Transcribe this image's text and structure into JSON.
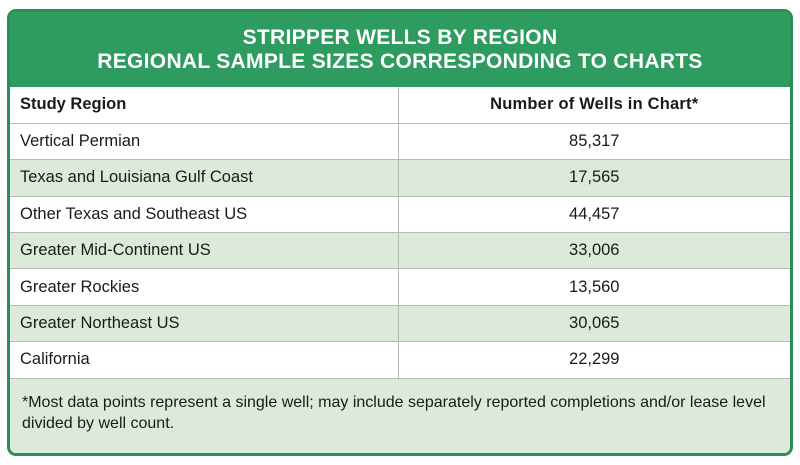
{
  "title": {
    "line1": "STRIPPER WELLS BY REGION",
    "line2": "REGIONAL SAMPLE SIZES CORRESPONDING TO CHARTS"
  },
  "table": {
    "headers": [
      "Study Region",
      "Number of Wells in Chart*"
    ],
    "rows": [
      [
        "Vertical Permian",
        "85,317"
      ],
      [
        "Texas and Louisiana Gulf Coast",
        "17,565"
      ],
      [
        "Other Texas and Southeast US",
        "44,457"
      ],
      [
        "Greater Mid-Continent US",
        "33,006"
      ],
      [
        "Greater Rockies",
        "13,560"
      ],
      [
        "Greater Northeast US",
        "30,065"
      ],
      [
        "California",
        "22,299"
      ]
    ]
  },
  "footnote": "*Most data points represent a single well; may include separately reported completions and/or lease level divided by well count.",
  "colors": {
    "header_green": "#2e9b5f",
    "alt_row": "#dcebd9"
  }
}
